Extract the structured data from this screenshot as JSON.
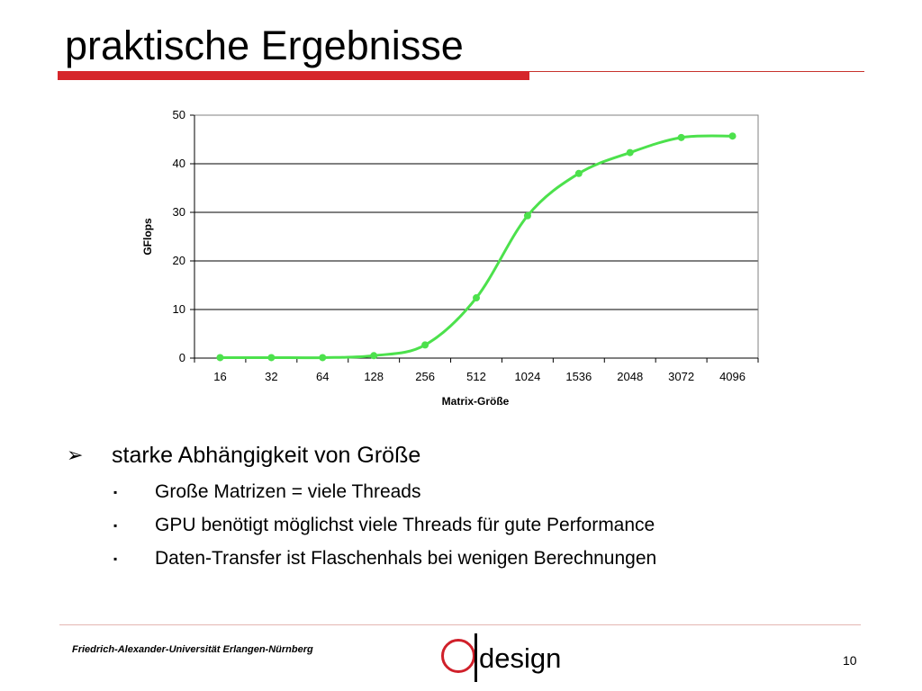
{
  "slide": {
    "title": "praktische Ergebnisse",
    "footer_text": "Friedrich-Alexander-Universität Erlangen-Nürnberg",
    "logo_text": "design",
    "page_number": "10",
    "colors": {
      "accent_red": "#d6262b",
      "series_green": "#4ce14c"
    }
  },
  "bullets": [
    {
      "text": "starke Abhängigkeit von Größe",
      "marker": "➢",
      "sub": [
        {
          "marker": "▪",
          "text": "Große Matrizen = viele Threads"
        },
        {
          "marker": "▪",
          "text": "GPU benötigt möglichst viele Threads für gute Performance"
        },
        {
          "marker": "▪",
          "text": "Daten-Transfer ist Flaschenhals bei wenigen Berechnungen"
        }
      ]
    }
  ],
  "chart_data": {
    "type": "line",
    "smoothed": true,
    "markers": true,
    "categories": [
      "16",
      "32",
      "64",
      "128",
      "256",
      "512",
      "1024",
      "1536",
      "2048",
      "3072",
      "4096"
    ],
    "series": [
      {
        "color": "#4ce14c",
        "values": [
          0.1,
          0.1,
          0.1,
          0.5,
          2.7,
          12.4,
          29.3,
          38,
          42.3,
          45.4,
          45.7
        ]
      }
    ],
    "xlabel": "Matrix-Größe",
    "ylabel": "GFlops",
    "ylim": [
      0,
      50
    ],
    "yticks": [
      0,
      10,
      20,
      30,
      40,
      50
    ],
    "grid": "horizontal"
  }
}
